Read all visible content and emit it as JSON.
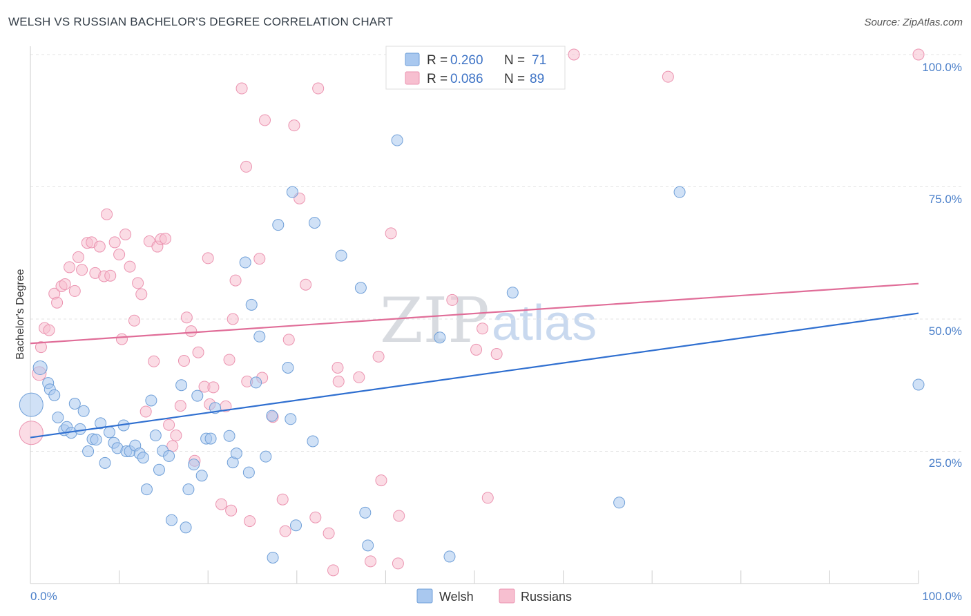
{
  "title": "WELSH VS RUSSIAN BACHELOR'S DEGREE CORRELATION CHART",
  "source": "Source: ZipAtlas.com",
  "watermark": {
    "zip": "ZIP",
    "atlas": "atlas"
  },
  "colors": {
    "welsh_fill": "#a9c8ef",
    "welsh_stroke": "#6f9fd8",
    "welsh_line": "#2f6fd0",
    "russian_fill": "#f7bfd0",
    "russian_stroke": "#eb93b0",
    "russian_line": "#e06d98",
    "tick": "#4a7fc9",
    "grid": "#e3e3e3"
  },
  "legend": {
    "welsh": {
      "r_label": "R = ",
      "r_value": "0.260",
      "n_label": "N = ",
      "n_value": "71"
    },
    "russians": {
      "r_label": "R = ",
      "r_value": "0.086",
      "n_label": "N = ",
      "n_value": "89"
    }
  },
  "chart_data": {
    "type": "scatter",
    "title": "WELSH VS RUSSIAN BACHELOR'S DEGREE CORRELATION CHART",
    "xlabel": "",
    "ylabel": "Bachelor's Degree",
    "x_tick_labels": [
      "0.0%",
      "100.0%"
    ],
    "y_tick_labels": [
      "25.0%",
      "50.0%",
      "75.0%",
      "100.0%"
    ],
    "xlim": [
      0,
      100
    ],
    "ylim": [
      0,
      100
    ],
    "grid": true,
    "legend_position": "bottom-center",
    "series": [
      {
        "name": "Welsh",
        "trend": {
          "x": [
            0,
            100
          ],
          "y": [
            27.6,
            51.1
          ]
        },
        "points": [
          [
            0.1,
            33.8,
            "L"
          ],
          [
            1.1,
            40.8,
            "M"
          ],
          [
            2.0,
            37.9,
            "s"
          ],
          [
            2.2,
            36.7,
            "s"
          ],
          [
            2.7,
            35.6,
            "s"
          ],
          [
            3.1,
            31.4,
            "s"
          ],
          [
            3.8,
            29.0,
            "s"
          ],
          [
            4.1,
            29.6,
            "s"
          ],
          [
            4.6,
            28.5,
            "s"
          ],
          [
            5.0,
            34.0,
            "s"
          ],
          [
            5.6,
            29.2,
            "s"
          ],
          [
            6.0,
            32.6,
            "s"
          ],
          [
            6.5,
            25.0,
            "s"
          ],
          [
            7.0,
            27.3,
            "s"
          ],
          [
            7.4,
            27.2,
            "s"
          ],
          [
            7.9,
            30.3,
            "s"
          ],
          [
            8.4,
            22.8,
            "s"
          ],
          [
            8.9,
            28.6,
            "s"
          ],
          [
            9.4,
            26.6,
            "s"
          ],
          [
            9.8,
            25.6,
            "s"
          ],
          [
            10.5,
            29.9,
            "s"
          ],
          [
            10.8,
            25.0,
            "s"
          ],
          [
            11.2,
            25.0,
            "s"
          ],
          [
            11.8,
            26.1,
            "s"
          ],
          [
            12.3,
            24.6,
            "s"
          ],
          [
            12.7,
            23.8,
            "s"
          ],
          [
            13.1,
            17.8,
            "s"
          ],
          [
            13.6,
            34.6,
            "s"
          ],
          [
            14.1,
            28.0,
            "s"
          ],
          [
            14.5,
            21.5,
            "s"
          ],
          [
            14.9,
            25.1,
            "s"
          ],
          [
            15.6,
            24.1,
            "s"
          ],
          [
            15.9,
            12.0,
            "s"
          ],
          [
            17.0,
            37.5,
            "s"
          ],
          [
            17.5,
            10.6,
            "s"
          ],
          [
            17.8,
            17.8,
            "s"
          ],
          [
            18.4,
            22.5,
            "s"
          ],
          [
            18.8,
            35.5,
            "s"
          ],
          [
            19.3,
            20.4,
            "s"
          ],
          [
            19.8,
            27.4,
            "s"
          ],
          [
            20.3,
            27.4,
            "s"
          ],
          [
            20.8,
            33.2,
            "s"
          ],
          [
            22.4,
            27.9,
            "s"
          ],
          [
            22.8,
            22.9,
            "s"
          ],
          [
            23.2,
            24.6,
            "s"
          ],
          [
            24.2,
            60.7,
            "s"
          ],
          [
            24.6,
            21.0,
            "s"
          ],
          [
            24.9,
            52.7,
            "s"
          ],
          [
            25.4,
            38.0,
            "s"
          ],
          [
            25.8,
            46.7,
            "s"
          ],
          [
            27.2,
            31.7,
            "s"
          ],
          [
            29.0,
            40.8,
            "s"
          ],
          [
            29.3,
            31.1,
            "s"
          ],
          [
            29.5,
            74.0,
            "s"
          ],
          [
            29.9,
            11.0,
            "s"
          ],
          [
            31.8,
            26.9,
            "s"
          ],
          [
            32.0,
            68.2,
            "s"
          ],
          [
            27.3,
            4.9,
            "s"
          ],
          [
            35.0,
            62.0,
            "s"
          ],
          [
            37.2,
            55.9,
            "s"
          ],
          [
            37.7,
            13.4,
            "s"
          ],
          [
            38.0,
            7.2,
            "s"
          ],
          [
            41.3,
            83.8,
            "s"
          ],
          [
            46.1,
            46.5,
            "s"
          ],
          [
            47.2,
            5.1,
            "s"
          ],
          [
            54.3,
            55.0,
            "s"
          ],
          [
            66.3,
            15.3,
            "s"
          ],
          [
            73.1,
            74.0,
            "s"
          ],
          [
            100.0,
            37.6,
            "s"
          ],
          [
            27.9,
            67.8,
            "s"
          ],
          [
            26.5,
            24.0,
            "s"
          ]
        ]
      },
      {
        "name": "Russians",
        "trend": {
          "x": [
            0,
            100
          ],
          "y": [
            45.4,
            56.7
          ]
        },
        "points": [
          [
            0.1,
            28.5,
            "L"
          ],
          [
            1.0,
            39.7,
            "M"
          ],
          [
            1.2,
            44.7,
            "s"
          ],
          [
            1.6,
            48.3,
            "s"
          ],
          [
            2.1,
            47.9,
            "s"
          ],
          [
            2.7,
            54.8,
            "s"
          ],
          [
            3.0,
            53.1,
            "s"
          ],
          [
            3.5,
            56.2,
            "s"
          ],
          [
            3.9,
            56.6,
            "s"
          ],
          [
            4.4,
            59.8,
            "s"
          ],
          [
            5.0,
            55.3,
            "s"
          ],
          [
            5.4,
            61.7,
            "s"
          ],
          [
            5.8,
            59.3,
            "s"
          ],
          [
            6.4,
            64.4,
            "s"
          ],
          [
            6.9,
            64.5,
            "s"
          ],
          [
            7.3,
            58.7,
            "s"
          ],
          [
            7.8,
            63.7,
            "s"
          ],
          [
            8.3,
            58.1,
            "s"
          ],
          [
            8.6,
            69.8,
            "s"
          ],
          [
            9.0,
            58.2,
            "s"
          ],
          [
            9.5,
            64.5,
            "s"
          ],
          [
            10.0,
            62.2,
            "s"
          ],
          [
            10.3,
            46.2,
            "s"
          ],
          [
            10.7,
            66.0,
            "s"
          ],
          [
            11.2,
            59.9,
            "s"
          ],
          [
            11.7,
            49.7,
            "s"
          ],
          [
            12.1,
            56.8,
            "s"
          ],
          [
            12.5,
            54.7,
            "s"
          ],
          [
            13.0,
            32.5,
            "s"
          ],
          [
            13.4,
            64.7,
            "s"
          ],
          [
            13.9,
            42.0,
            "s"
          ],
          [
            14.3,
            63.7,
            "s"
          ],
          [
            14.7,
            65.1,
            "s"
          ],
          [
            15.2,
            65.2,
            "s"
          ],
          [
            15.6,
            30.0,
            "s"
          ],
          [
            16.0,
            26.0,
            "s"
          ],
          [
            16.4,
            28.0,
            "s"
          ],
          [
            16.9,
            33.6,
            "s"
          ],
          [
            17.3,
            42.1,
            "s"
          ],
          [
            17.6,
            50.3,
            "s"
          ],
          [
            18.1,
            47.7,
            "s"
          ],
          [
            18.5,
            23.2,
            "s"
          ],
          [
            18.9,
            43.7,
            "s"
          ],
          [
            19.6,
            37.2,
            "s"
          ],
          [
            20.2,
            33.9,
            "s"
          ],
          [
            20.0,
            61.5,
            "s"
          ],
          [
            20.6,
            37.1,
            "s"
          ],
          [
            21.5,
            15.0,
            "s"
          ],
          [
            22.0,
            33.5,
            "s"
          ],
          [
            22.4,
            42.3,
            "s"
          ],
          [
            22.6,
            13.8,
            "s"
          ],
          [
            23.1,
            57.3,
            "s"
          ],
          [
            23.8,
            93.6,
            "s"
          ],
          [
            24.3,
            78.8,
            "s"
          ],
          [
            24.7,
            11.8,
            "s"
          ],
          [
            25.8,
            61.4,
            "s"
          ],
          [
            26.1,
            38.9,
            "s"
          ],
          [
            26.4,
            87.6,
            "s"
          ],
          [
            27.3,
            31.5,
            "s"
          ],
          [
            28.4,
            15.9,
            "s"
          ],
          [
            28.7,
            9.9,
            "s"
          ],
          [
            29.1,
            46.1,
            "s"
          ],
          [
            29.7,
            86.6,
            "s"
          ],
          [
            30.3,
            72.8,
            "s"
          ],
          [
            31.0,
            56.5,
            "s"
          ],
          [
            32.1,
            12.5,
            "s"
          ],
          [
            32.4,
            93.6,
            "s"
          ],
          [
            33.6,
            9.5,
            "s"
          ],
          [
            34.1,
            2.5,
            "s"
          ],
          [
            34.6,
            40.8,
            "s"
          ],
          [
            34.7,
            38.2,
            "s"
          ],
          [
            37.0,
            39.0,
            "s"
          ],
          [
            38.3,
            4.2,
            "s"
          ],
          [
            39.2,
            42.9,
            "s"
          ],
          [
            39.5,
            19.5,
            "s"
          ],
          [
            40.6,
            66.2,
            "s"
          ],
          [
            41.4,
            3.8,
            "s"
          ],
          [
            41.5,
            12.8,
            "s"
          ],
          [
            47.5,
            53.6,
            "s"
          ],
          [
            50.2,
            44.2,
            "s"
          ],
          [
            50.9,
            48.2,
            "s"
          ],
          [
            51.5,
            16.2,
            "s"
          ],
          [
            52.5,
            43.4,
            "s"
          ],
          [
            59.5,
            100.0,
            "s"
          ],
          [
            61.2,
            100.0,
            "s"
          ],
          [
            71.8,
            95.8,
            "s"
          ],
          [
            100.0,
            100.0,
            "s"
          ],
          [
            22.8,
            50.0,
            "s"
          ],
          [
            24.4,
            38.2,
            "s"
          ]
        ]
      }
    ]
  },
  "bottom_legend": {
    "welsh": "Welsh",
    "russians": "Russians"
  }
}
